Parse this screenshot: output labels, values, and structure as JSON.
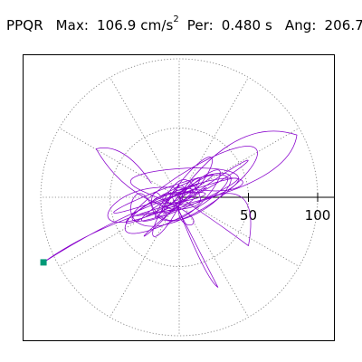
{
  "header": {
    "station": "PPQR",
    "max_label": "Max:",
    "max_value": "106.9 cm/s",
    "max_exponent": "2",
    "per_label": "Per:",
    "per_value": "0.480 s",
    "ang_label": "Ang:",
    "ang_value": "206.7"
  },
  "chart_data": {
    "type": "polar-orbit",
    "title": "PPQR  Max: 106.9 cm/s2  Per: 0.480 s  Ang: 206.7",
    "radial_ticks": [
      50,
      100
    ],
    "radial_tick_labels": [
      "50",
      "100"
    ],
    "rings": [
      50,
      100
    ],
    "spoke_angles_deg": [
      0,
      30,
      60,
      90,
      120,
      150,
      180,
      210,
      240,
      270,
      300,
      330
    ],
    "max_amplitude": 106.9,
    "max_angle_deg": 206.7,
    "period_s": 0.48,
    "orbit_color": "#8800cc",
    "marker_color": "#009977",
    "grid": "dotted",
    "peak_point": {
      "x": -98,
      "y": -47
    },
    "orbit_extent": {
      "x": [
        -100,
        90
      ],
      "y": [
        -70,
        50
      ]
    }
  }
}
